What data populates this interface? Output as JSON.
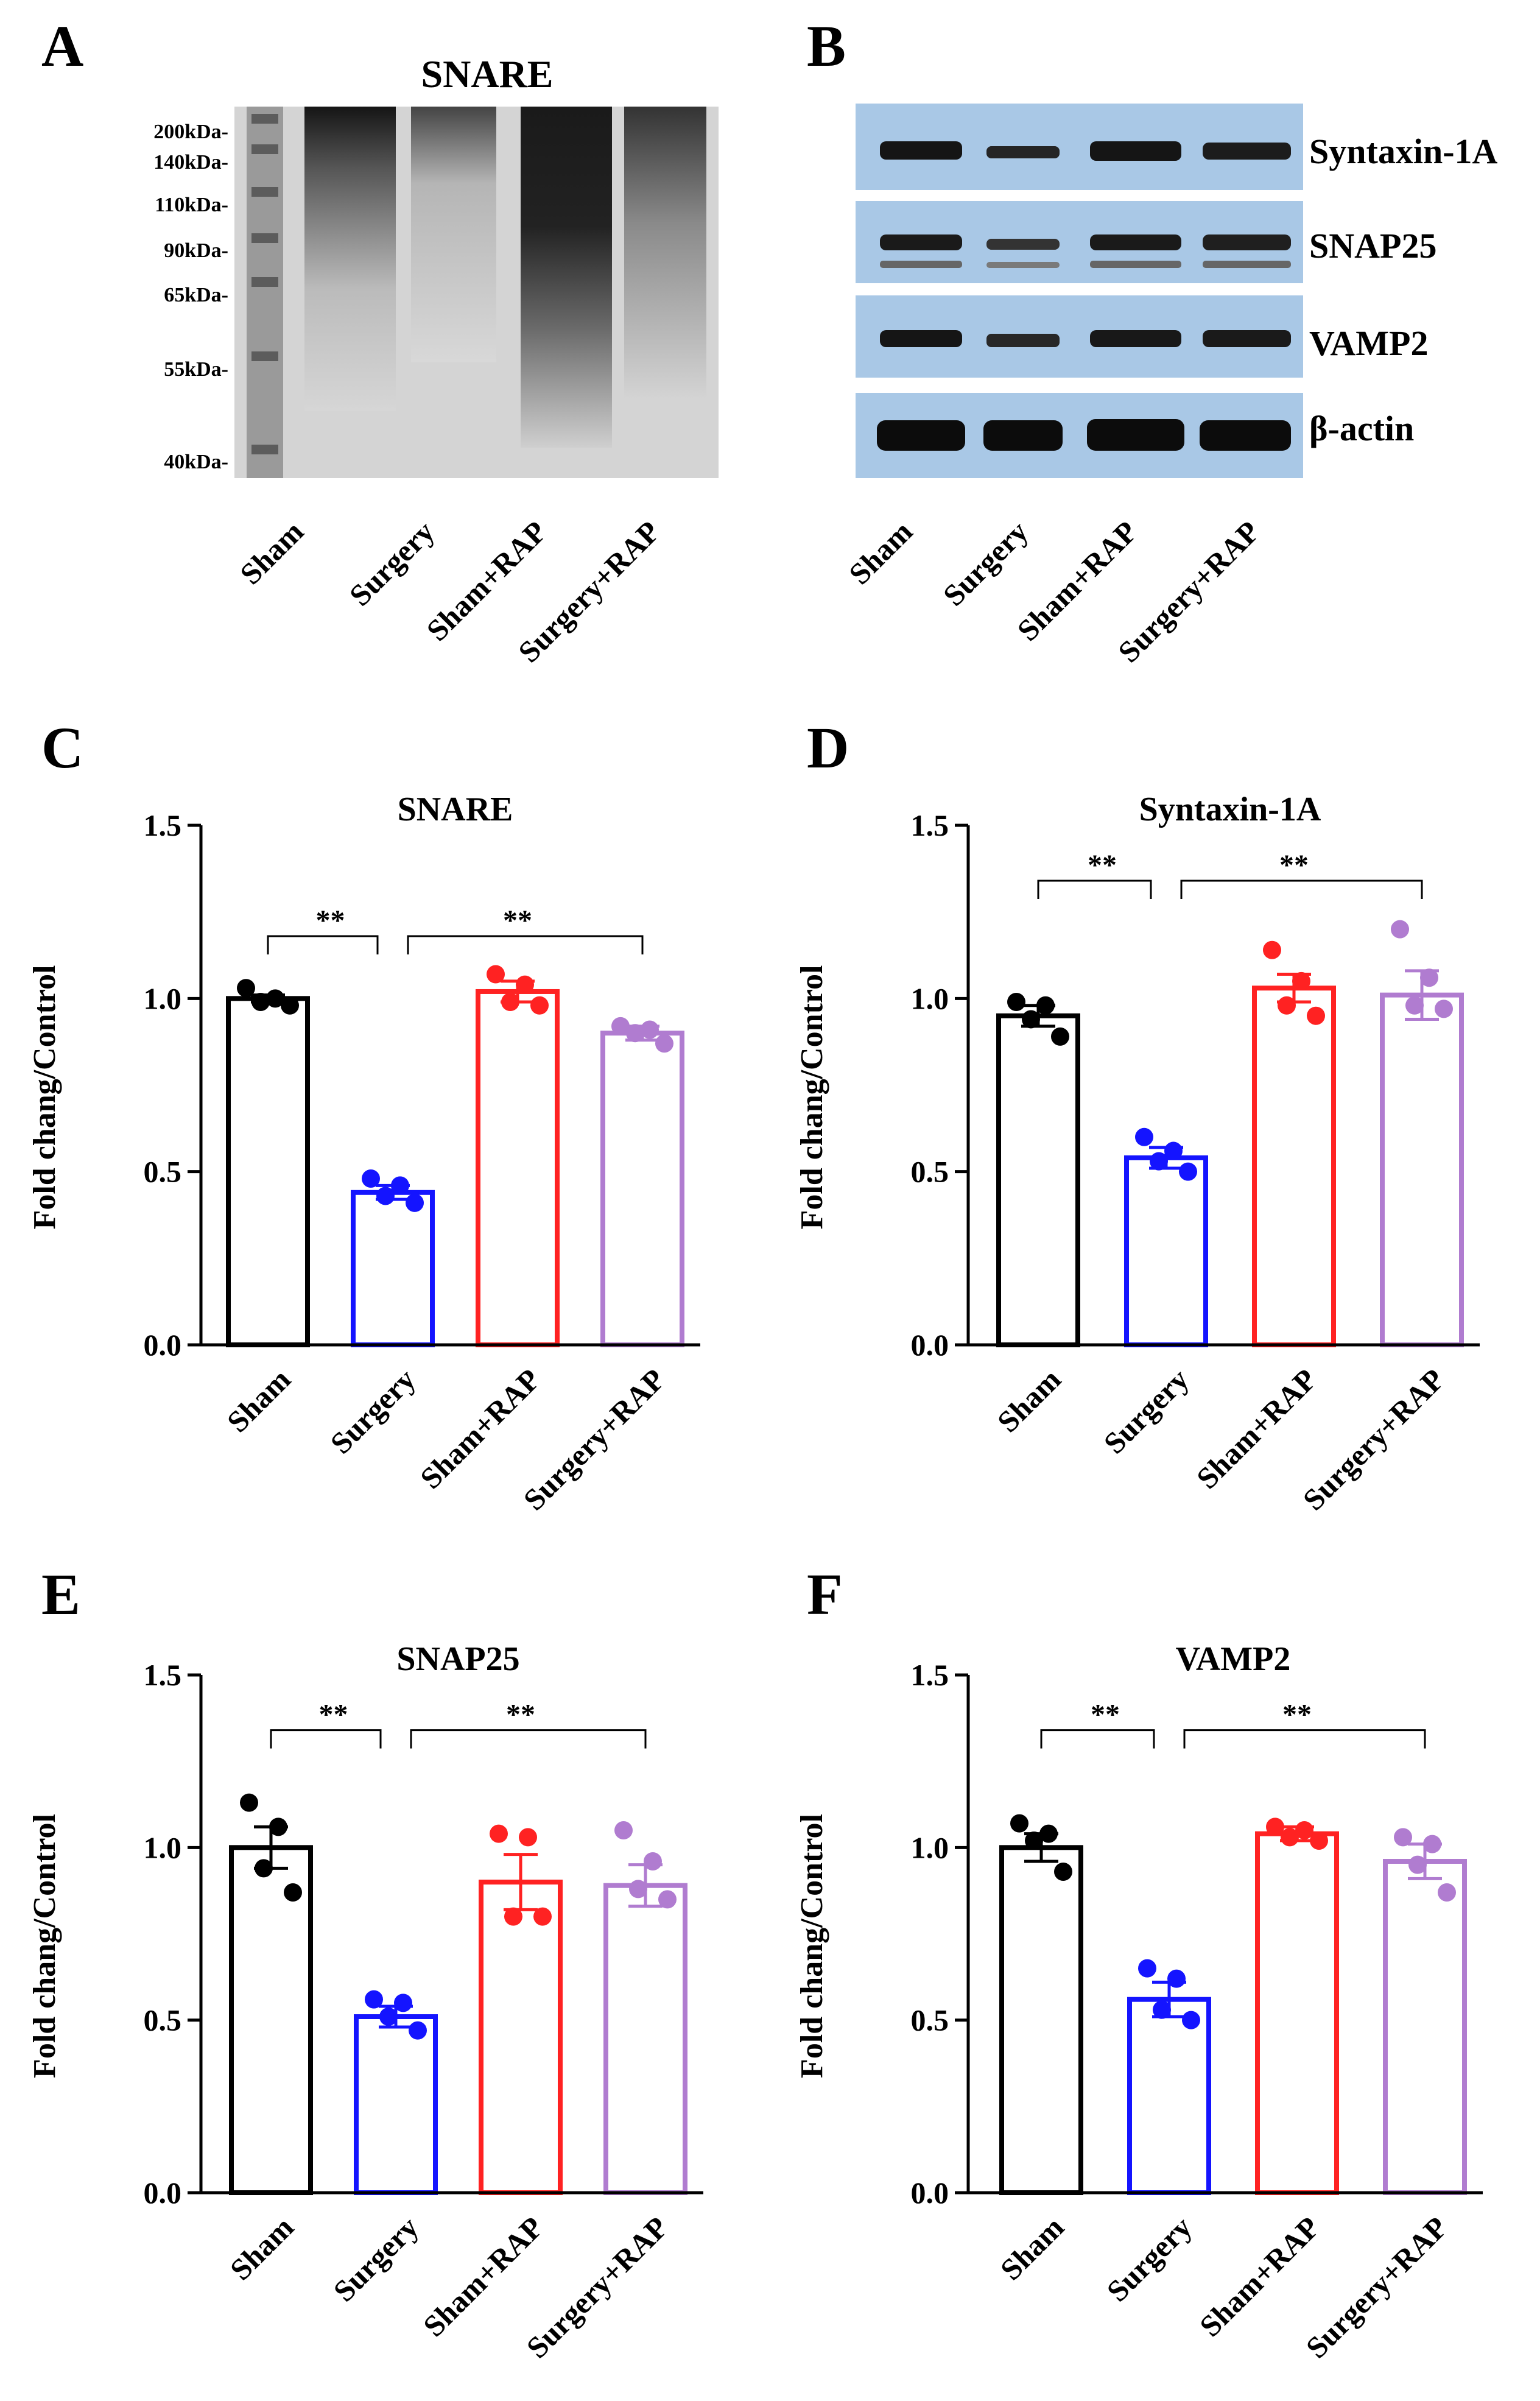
{
  "panels": {
    "A": {
      "letter": "A",
      "title": "SNARE",
      "ladder": [
        "200kDa-",
        "140kDa-",
        "110kDa-",
        "90kDa-",
        "65kDa-",
        "55kDa-",
        "40kDa-"
      ],
      "lanes": [
        "Sham",
        "Surgery",
        "Sham+RAP",
        "Surgery+RAP"
      ]
    },
    "B": {
      "letter": "B",
      "bands": [
        "Syntaxin-1A",
        "SNAP25",
        "VAMP2",
        "β-actin"
      ],
      "lanes": [
        "Sham",
        "Surgery",
        "Sham+RAP",
        "Surgery+RAP"
      ]
    }
  },
  "colors": {
    "Sham": "#000000",
    "Surgery": "#1414ff",
    "Sham+RAP": "#ff2222",
    "Surgery+RAP": "#b07cd0",
    "blot_background": "#a9c8e6"
  },
  "chart_data": [
    {
      "panel": "C",
      "type": "bar",
      "title": "SNARE",
      "ylabel": "Fold chang/Control",
      "ylim": [
        0,
        1.5
      ],
      "yticks": [
        "0.0",
        "0.5",
        "1.0",
        "1.5"
      ],
      "categories": [
        "Sham",
        "Surgery",
        "Sham+RAP",
        "Surgery+RAP"
      ],
      "values": [
        1.0,
        0.44,
        1.02,
        0.9
      ],
      "sem": [
        0.01,
        0.02,
        0.03,
        0.02
      ],
      "points": [
        [
          1.03,
          1.0,
          0.99,
          0.98
        ],
        [
          0.48,
          0.46,
          0.43,
          0.41
        ],
        [
          1.07,
          1.04,
          0.99,
          0.98
        ],
        [
          0.92,
          0.91,
          0.9,
          0.87
        ]
      ],
      "significance": [
        {
          "from": 0,
          "to": 1,
          "label": "**"
        },
        {
          "from": 1,
          "to": 3,
          "label": "**"
        }
      ]
    },
    {
      "panel": "D",
      "type": "bar",
      "title": "Syntaxin-1A",
      "ylabel": "Fold chang/Control",
      "ylim": [
        0,
        1.5
      ],
      "yticks": [
        "0.0",
        "0.5",
        "1.0",
        "1.5"
      ],
      "categories": [
        "Sham",
        "Surgery",
        "Sham+RAP",
        "Surgery+RAP"
      ],
      "values": [
        0.95,
        0.54,
        1.03,
        1.01
      ],
      "sem": [
        0.03,
        0.03,
        0.04,
        0.07
      ],
      "points": [
        [
          0.99,
          0.98,
          0.94,
          0.89
        ],
        [
          0.6,
          0.56,
          0.53,
          0.5
        ],
        [
          1.14,
          1.05,
          0.98,
          0.95
        ],
        [
          1.2,
          1.06,
          0.98,
          0.97
        ]
      ],
      "significance": [
        {
          "from": 0,
          "to": 1,
          "label": "**"
        },
        {
          "from": 1,
          "to": 3,
          "label": "**"
        }
      ]
    },
    {
      "panel": "E",
      "type": "bar",
      "title": "SNAP25",
      "ylabel": "Fold chang/Control",
      "ylim": [
        0,
        1.5
      ],
      "yticks": [
        "0.0",
        "0.5",
        "1.0",
        "1.5"
      ],
      "categories": [
        "Sham",
        "Surgery",
        "Sham+RAP",
        "Surgery+RAP"
      ],
      "values": [
        1.0,
        0.51,
        0.9,
        0.89
      ],
      "sem": [
        0.06,
        0.03,
        0.08,
        0.06
      ],
      "points": [
        [
          1.13,
          1.06,
          0.94,
          0.87
        ],
        [
          0.56,
          0.55,
          0.51,
          0.47
        ],
        [
          1.04,
          1.03,
          0.8,
          0.8
        ],
        [
          1.05,
          0.96,
          0.88,
          0.85
        ]
      ],
      "significance": [
        {
          "from": 0,
          "to": 1,
          "label": "**"
        },
        {
          "from": 1,
          "to": 3,
          "label": "**"
        }
      ]
    },
    {
      "panel": "F",
      "type": "bar",
      "title": "VAMP2",
      "ylabel": "Fold chang/Control",
      "ylim": [
        0,
        1.5
      ],
      "yticks": [
        "0.0",
        "0.5",
        "1.0",
        "1.5"
      ],
      "categories": [
        "Sham",
        "Surgery",
        "Sham+RAP",
        "Surgery+RAP"
      ],
      "values": [
        1.0,
        0.56,
        1.04,
        0.96
      ],
      "sem": [
        0.04,
        0.05,
        0.02,
        0.05
      ],
      "points": [
        [
          1.07,
          1.04,
          1.02,
          0.93
        ],
        [
          0.65,
          0.62,
          0.53,
          0.5
        ],
        [
          1.06,
          1.05,
          1.03,
          1.02
        ],
        [
          1.03,
          1.01,
          0.95,
          0.87
        ]
      ],
      "significance": [
        {
          "from": 0,
          "to": 1,
          "label": "**"
        },
        {
          "from": 1,
          "to": 3,
          "label": "**"
        }
      ]
    }
  ]
}
